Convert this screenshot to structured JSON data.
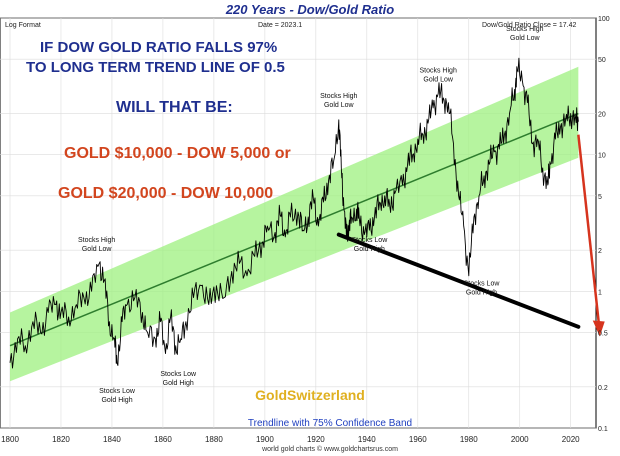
{
  "chart_data": {
    "type": "line",
    "title": "220 Years - Dow/Gold Ratio",
    "top_left_label": "Log Format",
    "date_label": "Date = 2023.1",
    "close_label": "Dow/Gold Ratio Close = 17.42",
    "footer_caption": "Trendline with 75% Confidence Band",
    "source": "world gold charts © www.goldchartsrus.com",
    "watermark": "GoldSwitzerland",
    "scale": "log",
    "grid": true,
    "xlim": [
      1800,
      2023
    ],
    "ylim": [
      0.1,
      100
    ],
    "x_ticks": [
      "1800",
      "1820",
      "1840",
      "1860",
      "1880",
      "1900",
      "1920",
      "1940",
      "1960",
      "1980",
      "2000",
      "2020"
    ],
    "y_ticks": [
      {
        "value": 100,
        "label": "100"
      },
      {
        "value": 50,
        "label": "50"
      },
      {
        "value": 20,
        "label": "20"
      },
      {
        "value": 10,
        "label": "10"
      },
      {
        "value": 5,
        "label": "5"
      },
      {
        "value": 2,
        "label": "2"
      },
      {
        "value": 1,
        "label": "1"
      },
      {
        "value": 0.5,
        "label": "0.5"
      },
      {
        "value": 0.2,
        "label": "0.2"
      },
      {
        "value": 0.1,
        "label": "0.1"
      }
    ],
    "headline": {
      "line1": "IF DOW GOLD RATIO FALLS 97%",
      "line2": "TO LONG TERM TREND LINE  OF 0.5",
      "line3": "WILL THAT BE:",
      "line4": "GOLD $10,000 - DOW 5,000 or",
      "line5": "GOLD $20,000 - DOW 10,000"
    },
    "trend": {
      "x": [
        1800,
        2023
      ],
      "y": [
        0.4,
        20
      ]
    },
    "band": {
      "x": [
        1800,
        2023
      ],
      "upper": [
        0.7,
        44
      ],
      "lower": [
        0.22,
        9.5
      ]
    },
    "support_line": {
      "x": [
        1929,
        2023
      ],
      "y": [
        2.6,
        0.55
      ]
    },
    "projection": {
      "x": [
        2023,
        2031
      ],
      "y": [
        14,
        0.5
      ]
    },
    "series": [
      {
        "color": "#000000",
        "x": [
          1800,
          1803,
          1806,
          1809,
          1812,
          1815,
          1818,
          1820,
          1823,
          1826,
          1829,
          1832,
          1835,
          1837,
          1839,
          1841,
          1842,
          1844,
          1846,
          1849,
          1852,
          1854,
          1857,
          1859,
          1861,
          1863,
          1865,
          1867,
          1869,
          1872,
          1875,
          1878,
          1881,
          1884,
          1887,
          1890,
          1893,
          1896,
          1899,
          1901,
          1904,
          1906,
          1908,
          1910,
          1913,
          1915,
          1917,
          1919,
          1921,
          1923,
          1925,
          1927,
          1929,
          1930,
          1931,
          1932,
          1933,
          1934,
          1936,
          1937,
          1939,
          1941,
          1943,
          1945,
          1947,
          1949,
          1951,
          1954,
          1956,
          1958,
          1960,
          1962,
          1964,
          1966,
          1968,
          1970,
          1972,
          1974,
          1976,
          1978,
          1980,
          1982,
          1984,
          1986,
          1988,
          1990,
          1992,
          1994,
          1996,
          1998,
          1999,
          2001,
          2003,
          2005,
          2007,
          2009,
          2011,
          2012,
          2014,
          2016,
          2018,
          2020,
          2022,
          2023
        ],
        "y": [
          0.3,
          0.45,
          0.4,
          0.6,
          0.5,
          0.7,
          0.8,
          0.7,
          0.65,
          0.8,
          0.9,
          1.0,
          1.6,
          1.2,
          0.6,
          0.45,
          0.3,
          0.6,
          0.8,
          0.9,
          0.7,
          0.5,
          0.45,
          0.6,
          0.35,
          0.65,
          0.4,
          0.45,
          0.6,
          0.9,
          1.1,
          0.8,
          1.1,
          0.9,
          1.4,
          1.6,
          1.3,
          1.8,
          2.3,
          3.0,
          2.7,
          3.6,
          2.5,
          3.5,
          3.8,
          2.8,
          3.5,
          4.8,
          3.0,
          4.5,
          6.5,
          9.0,
          18.0,
          8.0,
          4.0,
          2.5,
          3.0,
          3.5,
          4.0,
          3.5,
          2.6,
          2.8,
          3.5,
          4.5,
          5.0,
          4.2,
          5.2,
          6.0,
          8.5,
          10.0,
          13.0,
          14.0,
          17.0,
          22.0,
          28.0,
          26.0,
          24.0,
          12.0,
          5.0,
          3.0,
          1.3,
          3.5,
          5.0,
          7.0,
          8.5,
          10.5,
          11.0,
          14.0,
          20.0,
          30.0,
          42.0,
          35.0,
          24.0,
          12.0,
          13.0,
          8.0,
          6.0,
          8.5,
          13.0,
          16.0,
          18.0,
          20.0,
          18.0,
          17.42
        ]
      }
    ],
    "annotations": [
      {
        "text": "Stocks High\nGold Low",
        "x": 1834,
        "y": 2.3
      },
      {
        "text": "Stocks Low\nGold High",
        "x": 1842,
        "y": 0.18
      },
      {
        "text": "Stocks Low\nGold High",
        "x": 1866,
        "y": 0.24
      },
      {
        "text": "Stocks High\nGold Low",
        "x": 1929,
        "y": 26
      },
      {
        "text": "Stocks Low\nGold High",
        "x": 1941,
        "y": 2.3
      },
      {
        "text": "Stocks High\nGold Low",
        "x": 1968,
        "y": 40
      },
      {
        "text": "Stocks Low\nGold High",
        "x": 1985,
        "y": 1.1
      },
      {
        "text": "Stocks High\nGold Low",
        "x": 2002,
        "y": 80
      }
    ]
  }
}
